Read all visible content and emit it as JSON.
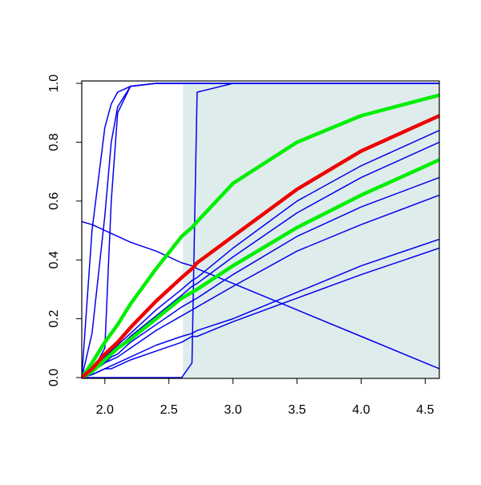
{
  "chart_data": {
    "type": "line",
    "x": [
      1.82,
      1.9,
      2.0,
      2.05,
      2.1,
      2.2,
      2.4,
      2.6,
      2.68,
      2.72,
      3.0,
      3.5,
      4.0,
      4.61
    ],
    "xlim": [
      1.82,
      4.61
    ],
    "ylim": [
      0,
      1
    ],
    "xticks": [
      {
        "value": 2,
        "label": "2.0"
      },
      {
        "value": 2.5,
        "label": "2.5"
      },
      {
        "value": 3,
        "label": "3.0"
      },
      {
        "value": 3.5,
        "label": "3.5"
      },
      {
        "value": 4,
        "label": "4.0"
      },
      {
        "value": 4.5,
        "label": "4.5"
      }
    ],
    "yticks": [
      {
        "value": 0,
        "label": "0.0"
      },
      {
        "value": 0.2,
        "label": "0.2"
      },
      {
        "value": 0.4,
        "label": "0.4"
      },
      {
        "value": 0.6,
        "label": "0.6"
      },
      {
        "value": 0.8,
        "label": "0.8"
      },
      {
        "value": 1,
        "label": "1.0"
      }
    ],
    "shaded_region": {
      "xmin": 2.61,
      "xmax": 4.61,
      "color": "#dfecec"
    },
    "series": [
      {
        "color": "#0000ee",
        "width": 1.5,
        "values": [
          0,
          0.5,
          0.85,
          0.93,
          0.97,
          0.99,
          1,
          1,
          1,
          1,
          1,
          1,
          1,
          1
        ]
      },
      {
        "color": "#0000ee",
        "width": 1.5,
        "values": [
          0,
          0.15,
          0.55,
          0.8,
          0.92,
          0.99,
          1,
          1,
          1,
          1,
          1,
          1,
          1,
          1
        ]
      },
      {
        "color": "#0000ee",
        "width": 1.5,
        "values": [
          0,
          0.02,
          0.1,
          0.6,
          0.9,
          0.99,
          1,
          1,
          1,
          1,
          1,
          1,
          1,
          1
        ]
      },
      {
        "color": "#0000ee",
        "width": 1.5,
        "values": [
          0,
          0,
          0,
          0,
          0,
          0,
          0,
          0,
          0.05,
          0.97,
          1,
          1,
          1,
          1
        ]
      },
      {
        "color": "#0000ee",
        "width": 1.5,
        "values": [
          0.53,
          0.52,
          0.5,
          0.49,
          0.48,
          0.46,
          0.43,
          0.39,
          0.38,
          0.37,
          0.32,
          0.23,
          0.14,
          0.03
        ]
      },
      {
        "color": "#0000ee",
        "width": 1.5,
        "values": [
          0,
          0.03,
          0.07,
          0.09,
          0.11,
          0.15,
          0.23,
          0.3,
          0.33,
          0.34,
          0.44,
          0.6,
          0.72,
          0.84
        ]
      },
      {
        "color": "#0000ee",
        "width": 1.5,
        "values": [
          0,
          0.02,
          0.06,
          0.08,
          0.1,
          0.14,
          0.21,
          0.28,
          0.31,
          0.32,
          0.41,
          0.56,
          0.68,
          0.8
        ]
      },
      {
        "color": "#0000ee",
        "width": 1.5,
        "values": [
          0,
          0.02,
          0.05,
          0.07,
          0.08,
          0.12,
          0.18,
          0.24,
          0.26,
          0.27,
          0.35,
          0.48,
          0.58,
          0.68
        ]
      },
      {
        "color": "#0000ee",
        "width": 1.5,
        "values": [
          0,
          0.02,
          0.05,
          0.06,
          0.07,
          0.1,
          0.16,
          0.21,
          0.23,
          0.24,
          0.31,
          0.43,
          0.52,
          0.62
        ]
      },
      {
        "color": "#0000ee",
        "width": 1.5,
        "values": [
          0,
          0.01,
          0.03,
          0.04,
          0.05,
          0.07,
          0.11,
          0.14,
          0.15,
          0.16,
          0.2,
          0.29,
          0.38,
          0.47
        ]
      },
      {
        "color": "#0000ee",
        "width": 1.5,
        "values": [
          0,
          0.01,
          0.03,
          0.03,
          0.04,
          0.06,
          0.09,
          0.12,
          0.14,
          0.14,
          0.19,
          0.27,
          0.35,
          0.44
        ]
      },
      {
        "color": "#00ee00",
        "width": 4.5,
        "values": [
          0,
          0.05,
          0.12,
          0.15,
          0.18,
          0.25,
          0.37,
          0.48,
          0.51,
          0.53,
          0.66,
          0.8,
          0.89,
          0.96
        ]
      },
      {
        "color": "#00ee00",
        "width": 4.5,
        "values": [
          0,
          0.02,
          0.06,
          0.08,
          0.1,
          0.13,
          0.2,
          0.27,
          0.29,
          0.3,
          0.38,
          0.51,
          0.62,
          0.74
        ]
      },
      {
        "color": "#ee0000",
        "width": 4.5,
        "values": [
          0,
          0.03,
          0.08,
          0.1,
          0.12,
          0.17,
          0.26,
          0.34,
          0.37,
          0.39,
          0.48,
          0.64,
          0.77,
          0.89
        ]
      }
    ]
  }
}
